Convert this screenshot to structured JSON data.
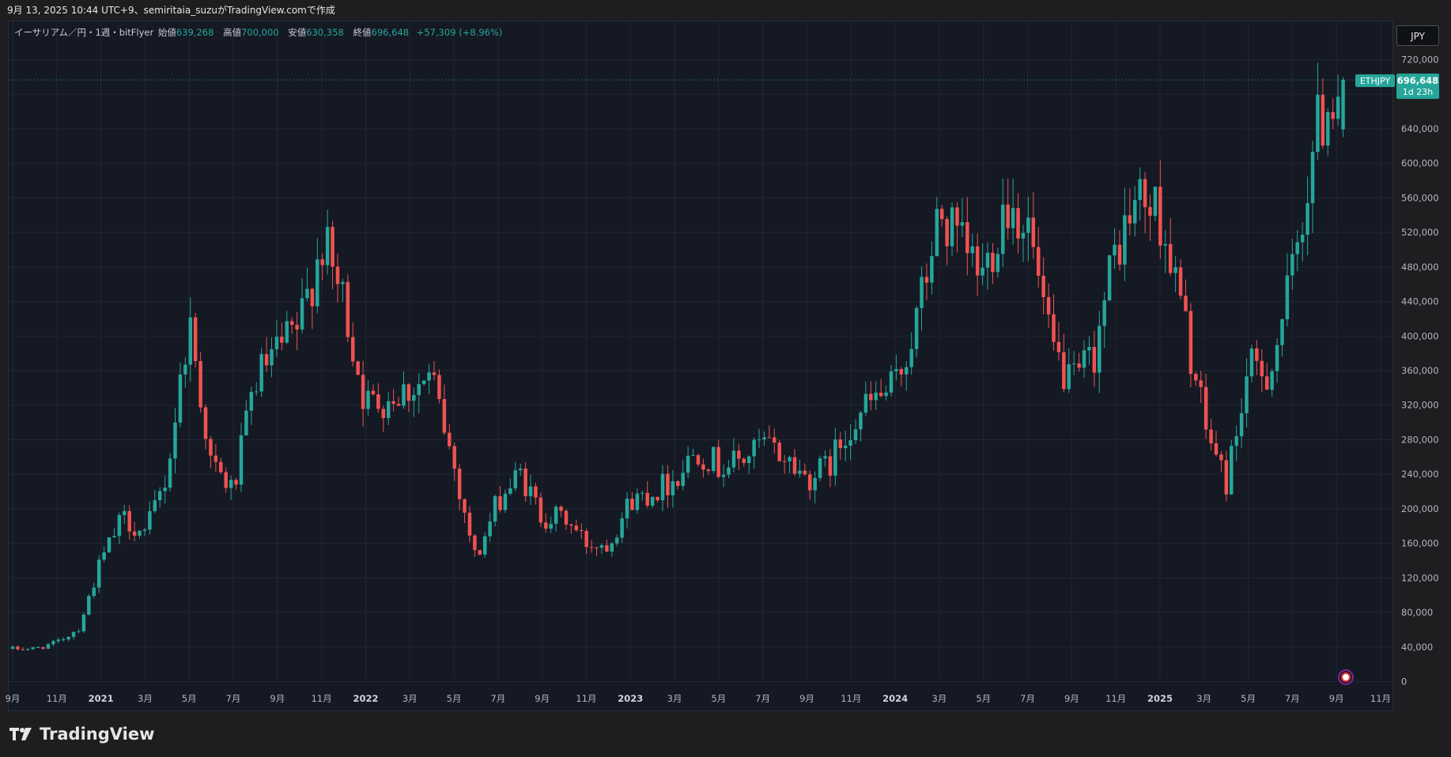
{
  "header": {
    "title": "9月 13, 2025 10:44 UTC+9、semiritaia_suzuがTradingView.comで作成"
  },
  "legend": {
    "symbol": "イーサリアム／円・1週・bitFlyer",
    "open_label": "始値",
    "open": "639,268",
    "high_label": "高値",
    "high": "700,000",
    "low_label": "安値",
    "low": "630,358",
    "close_label": "終値",
    "close": "696,648",
    "change": "+57,309 (+8.96%)"
  },
  "currency_button": "JPY",
  "price_tag": {
    "symbol": "ETHJPY",
    "price": "696,648",
    "countdown": "1d 23h"
  },
  "footer": {
    "brand": "TradingView"
  },
  "colors": {
    "up": "#26a69a",
    "down": "#ef5350",
    "background": "#151924",
    "grid": "#232632",
    "text": "#b2b5be"
  },
  "chart_data": {
    "type": "candlestick",
    "title": "",
    "y_ticks": [
      0,
      40000,
      80000,
      120000,
      160000,
      200000,
      240000,
      280000,
      320000,
      360000,
      400000,
      440000,
      480000,
      520000,
      560000,
      600000,
      640000,
      680000,
      720000
    ],
    "y_tick_labels": [
      "0",
      "40,000",
      "80,000",
      "120,000",
      "160,000",
      "200,000",
      "240,000",
      "280,000",
      "320,000",
      "360,000",
      "400,000",
      "440,000",
      "480,000",
      "520,000",
      "560,000",
      "600,000",
      "640,000",
      "",
      "720,000"
    ],
    "ylim": [
      0,
      740000
    ],
    "x_labels": [
      "9月",
      "11月",
      "2021",
      "3月",
      "5月",
      "7月",
      "9月",
      "11月",
      "2022",
      "3月",
      "5月",
      "7月",
      "9月",
      "11月",
      "2023",
      "3月",
      "5月",
      "7月",
      "9月",
      "11月",
      "2024",
      "3月",
      "5月",
      "7月",
      "9月",
      "11月",
      "2025",
      "3月",
      "5月",
      "7月",
      "9月",
      "11月"
    ],
    "x_label_bold": [
      false,
      false,
      true,
      false,
      false,
      false,
      false,
      false,
      true,
      false,
      false,
      false,
      false,
      false,
      true,
      false,
      false,
      false,
      false,
      false,
      true,
      false,
      false,
      false,
      false,
      false,
      true,
      false,
      false,
      false,
      false,
      false
    ],
    "x_label_months": [
      "2020-09",
      "2020-11",
      "2021-01",
      "2021-03",
      "2021-05",
      "2021-07",
      "2021-09",
      "2021-11",
      "2022-01",
      "2022-03",
      "2022-05",
      "2022-07",
      "2022-09",
      "2022-11",
      "2023-01",
      "2023-03",
      "2023-05",
      "2023-07",
      "2023-09",
      "2023-11",
      "2024-01",
      "2024-03",
      "2024-05",
      "2024-07",
      "2024-09",
      "2024-11",
      "2025-01",
      "2025-03",
      "2025-05",
      "2025-07",
      "2025-09",
      "2025-11"
    ],
    "period": "1 week",
    "anchors": [
      [
        "2020-09",
        38000
      ],
      [
        "2020-10",
        38000
      ],
      [
        "2020-11",
        45000
      ],
      [
        "2020-12",
        62000
      ],
      [
        "2021-01",
        140000
      ],
      [
        "2021-02",
        190000
      ],
      [
        "2021-03",
        170000
      ],
      [
        "2021-04",
        240000
      ],
      [
        "2021-05",
        420000
      ],
      [
        "2021-06",
        250000
      ],
      [
        "2021-07",
        220000
      ],
      [
        "2021-08",
        350000
      ],
      [
        "2021-09",
        380000
      ],
      [
        "2021-10",
        410000
      ],
      [
        "2021-11",
        510000
      ],
      [
        "2021-12",
        440000
      ],
      [
        "2022-01",
        320000
      ],
      [
        "2022-02",
        330000
      ],
      [
        "2022-03",
        340000
      ],
      [
        "2022-04",
        350000
      ],
      [
        "2022-05",
        250000
      ],
      [
        "2022-06",
        140000
      ],
      [
        "2022-07",
        210000
      ],
      [
        "2022-08",
        240000
      ],
      [
        "2022-09",
        190000
      ],
      [
        "2022-10",
        190000
      ],
      [
        "2022-11",
        160000
      ],
      [
        "2022-12",
        160000
      ],
      [
        "2023-01",
        210000
      ],
      [
        "2023-02",
        220000
      ],
      [
        "2023-03",
        235000
      ],
      [
        "2023-04",
        270000
      ],
      [
        "2023-05",
        250000
      ],
      [
        "2023-06",
        255000
      ],
      [
        "2023-07",
        275000
      ],
      [
        "2023-08",
        260000
      ],
      [
        "2023-09",
        235000
      ],
      [
        "2023-10",
        250000
      ],
      [
        "2023-11",
        300000
      ],
      [
        "2023-12",
        325000
      ],
      [
        "2024-01",
        340000
      ],
      [
        "2024-02",
        420000
      ],
      [
        "2024-03",
        540000
      ],
      [
        "2024-04",
        500000
      ],
      [
        "2024-05",
        470000
      ],
      [
        "2024-06",
        560000
      ],
      [
        "2024-07",
        530000
      ],
      [
        "2024-08",
        390000
      ],
      [
        "2024-09",
        340000
      ],
      [
        "2024-10",
        380000
      ],
      [
        "2024-11",
        500000
      ],
      [
        "2024-12",
        560000
      ],
      [
        "2025-01",
        540000
      ],
      [
        "2025-02",
        430000
      ],
      [
        "2025-03",
        300000
      ],
      [
        "2025-04",
        230000
      ],
      [
        "2025-05",
        360000
      ],
      [
        "2025-06",
        360000
      ],
      [
        "2025-07",
        470000
      ],
      [
        "2025-08",
        630000
      ],
      [
        "2025-09",
        696648
      ]
    ],
    "last": {
      "open": 639268,
      "high": 700000,
      "low": 630358,
      "close": 696648
    }
  }
}
